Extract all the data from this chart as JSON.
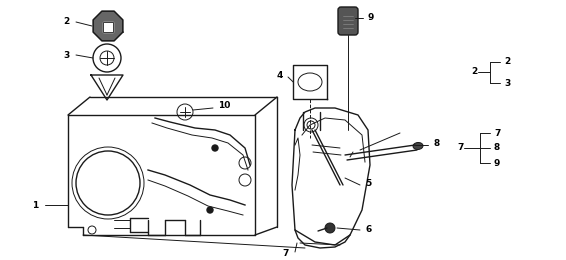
{
  "bg_color": "#ffffff",
  "lc": "#1a1a1a",
  "fig_width": 5.66,
  "fig_height": 2.6,
  "dpi": 100,
  "fs": 6.5
}
